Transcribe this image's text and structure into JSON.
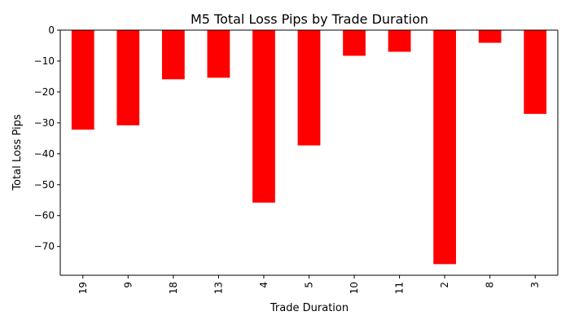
{
  "chart_data": {
    "type": "bar",
    "title": "M5 Total Loss Pips by Trade Duration",
    "xlabel": "Trade Duration",
    "ylabel": "Total Loss Pips",
    "categories": [
      "19",
      "9",
      "18",
      "13",
      "4",
      "5",
      "10",
      "11",
      "2",
      "8",
      "3"
    ],
    "values": [
      -32.2,
      -30.8,
      -15.9,
      -15.4,
      -55.8,
      -37.3,
      -8.3,
      -7.0,
      -75.7,
      -4.1,
      -27.1
    ],
    "ylim": [
      -79.3,
      0
    ],
    "yticks": [
      0,
      -10,
      -20,
      -30,
      -40,
      -50,
      -60,
      -70
    ],
    "bar_color": "#ff0000",
    "grid": false,
    "legend": "none"
  }
}
